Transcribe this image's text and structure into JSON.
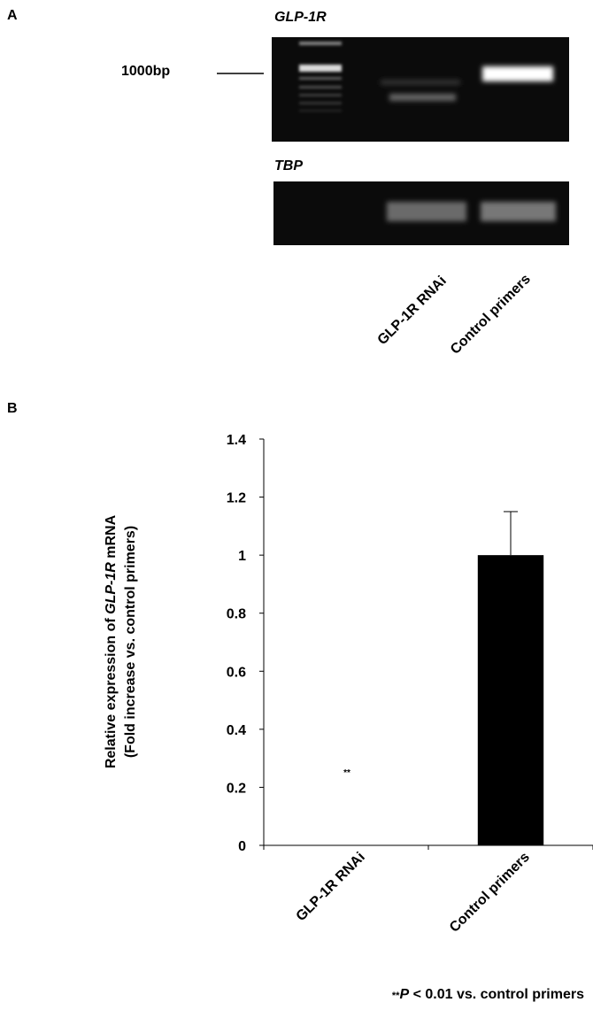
{
  "gel": {
    "panel_label": "A",
    "top_title": "GLP-1R",
    "marker": "1000bp",
    "bottom_title": "TBP",
    "lanes": [
      "GLP-1R RNAi",
      "Control primers"
    ]
  },
  "chart_data": {
    "type": "bar",
    "panel_label": "B",
    "y_label": {
      "line1": [
        "Relative expression of ",
        "GLP-1R",
        " mRNA"
      ],
      "line2": "(Fold increase vs. control primers)"
    },
    "categories": [
      "GLP-1R RNAi",
      "Control primers"
    ],
    "values": [
      0,
      1
    ],
    "errors": [
      null,
      0.15
    ],
    "color": "#000000",
    "annotation": "**",
    "ylim": [
      0,
      1.4
    ],
    "yticks": [
      0,
      0.2,
      0.4,
      0.6,
      0.8,
      1,
      1.2,
      1.4
    ],
    "footnote": [
      "**",
      "P",
      " < 0.01 vs. control primers"
    ]
  }
}
